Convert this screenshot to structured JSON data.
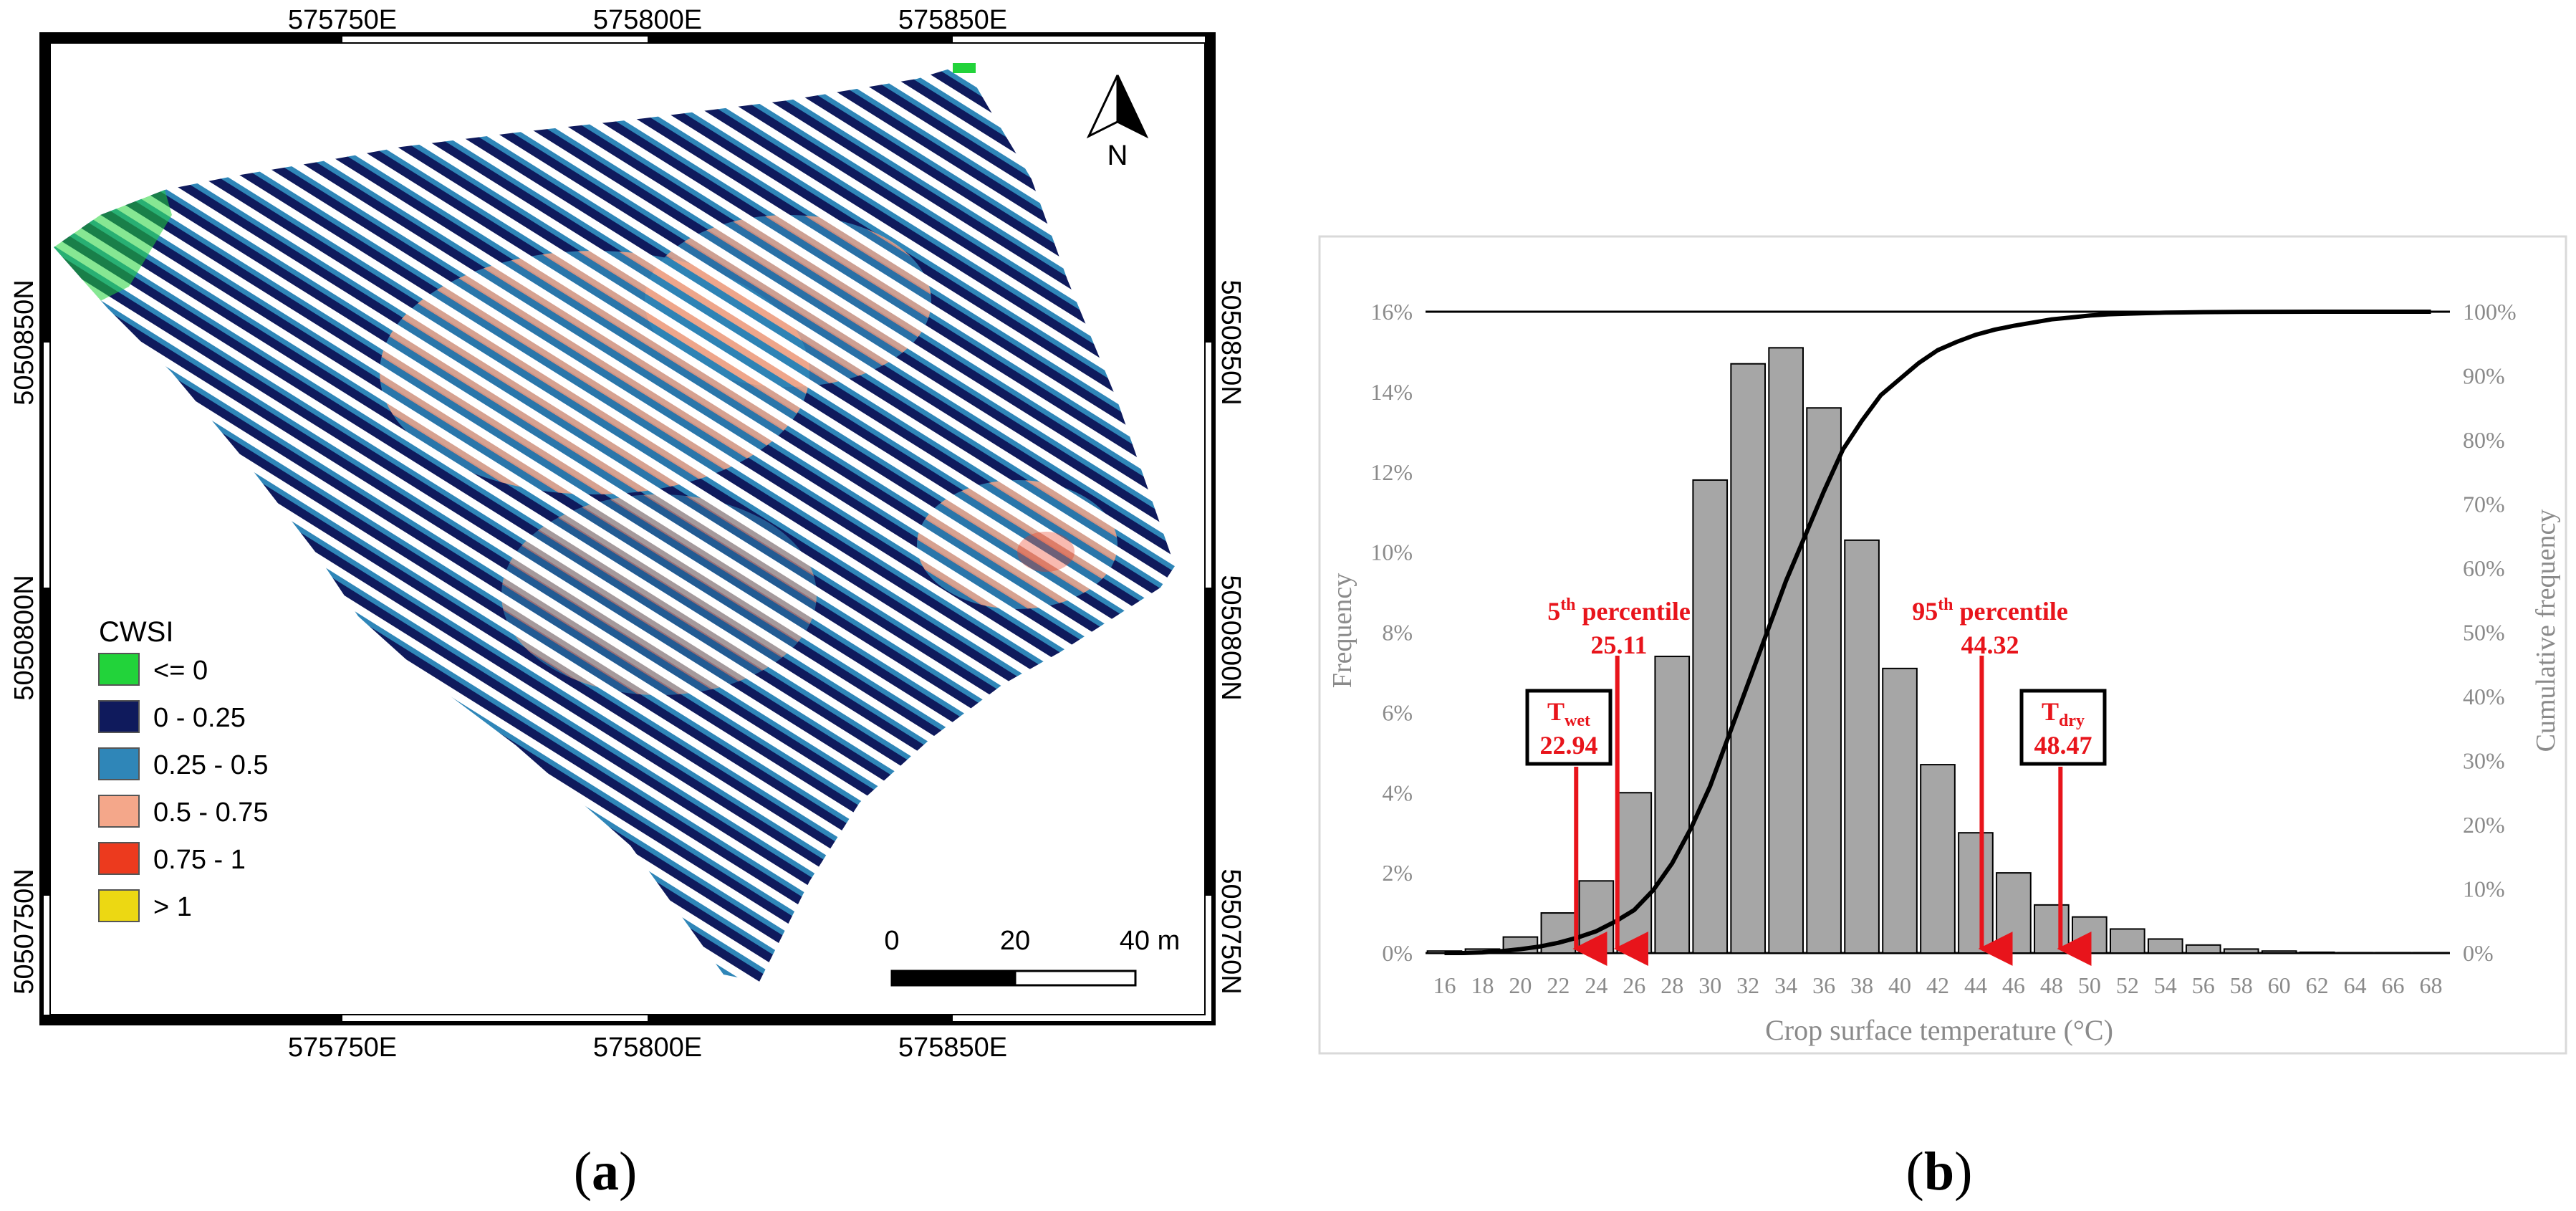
{
  "panel_labels": {
    "a": "a",
    "b": "b"
  },
  "map": {
    "coords_top": [
      "575750E",
      "575800E",
      "575850E"
    ],
    "coords_bottom": [
      "575750E",
      "575800E",
      "575850E"
    ],
    "coords_left": [
      "5050850N",
      "5050800N",
      "5050750N"
    ],
    "coords_right": [
      "5050850N",
      "5050800N",
      "5050750N"
    ],
    "north_label": "N",
    "scale": {
      "labels": [
        "0",
        "20",
        "40 m"
      ]
    },
    "legend": {
      "title": "CWSI",
      "items": [
        {
          "label": "<= 0",
          "color": "#22d33a"
        },
        {
          "label": "0 - 0.25",
          "color": "#0f1a5c"
        },
        {
          "label": "0.25 - 0.5",
          "color": "#2f86b8"
        },
        {
          "label": "0.5 - 0.75",
          "color": "#f4a78a"
        },
        {
          "label": "0.75 - 1",
          "color": "#ec3a1e"
        },
        {
          "label": "> 1",
          "color": "#ecd813"
        }
      ]
    }
  },
  "chart_data": {
    "type": "bar",
    "categories": [
      "16",
      "18",
      "20",
      "22",
      "24",
      "26",
      "28",
      "30",
      "32",
      "34",
      "36",
      "38",
      "40",
      "42",
      "44",
      "46",
      "48",
      "50",
      "52",
      "54",
      "56",
      "58",
      "60",
      "62",
      "64",
      "66",
      "68"
    ],
    "series": [
      {
        "name": "Frequency",
        "type": "bar",
        "axis": "left",
        "values": [
          0.05,
          0.1,
          0.4,
          1.0,
          1.8,
          4.0,
          7.4,
          11.8,
          14.7,
          15.1,
          13.6,
          10.3,
          7.1,
          4.7,
          3.0,
          2.0,
          1.2,
          0.9,
          0.6,
          0.35,
          0.2,
          0.1,
          0.05,
          0.02,
          0.01,
          0.01,
          0.01
        ]
      },
      {
        "name": "Cumulative frequency",
        "type": "line",
        "axis": "right",
        "x": [
          16,
          17,
          18,
          19,
          20,
          21,
          22,
          23,
          24,
          25,
          26,
          27,
          28,
          29,
          30,
          31,
          32,
          33,
          34,
          35,
          36,
          37,
          38,
          39,
          40,
          41,
          42,
          43,
          44,
          45,
          46,
          47,
          48,
          49,
          50,
          51,
          52,
          54,
          56,
          58,
          60,
          62,
          64,
          66,
          68
        ],
        "values": [
          0,
          0,
          0.1,
          0.3,
          0.6,
          1.0,
          1.6,
          2.4,
          3.4,
          4.9,
          6.7,
          9.8,
          14,
          19.5,
          26,
          34,
          42,
          50,
          58,
          65,
          72,
          78.5,
          83,
          87,
          89.5,
          92,
          94,
          95.3,
          96.4,
          97.2,
          97.8,
          98.3,
          98.8,
          99.1,
          99.4,
          99.6,
          99.7,
          99.85,
          99.93,
          99.97,
          99.99,
          100,
          100,
          100,
          100
        ]
      }
    ],
    "xlabel": "Crop surface temperature (°C)",
    "ylabel": "Frequency",
    "y2label": "Cumulative frequency",
    "ylim": [
      0,
      16
    ],
    "y2lim": [
      0,
      100
    ],
    "yticks": [
      "0%",
      "2%",
      "4%",
      "6%",
      "8%",
      "10%",
      "12%",
      "14%",
      "16%"
    ],
    "y2ticks": [
      "0%",
      "10%",
      "20%",
      "30%",
      "40%",
      "50%",
      "60%",
      "70%",
      "80%",
      "90%",
      "100%"
    ],
    "annotations": {
      "p5": {
        "sup": "th",
        "base": "5",
        "word": "percentile",
        "value": "25.11",
        "x": 25.11
      },
      "p95": {
        "sup": "th",
        "base": "95",
        "word": "percentile",
        "value": "44.32",
        "x": 44.32
      },
      "twet": {
        "symbol": "T",
        "sub": "wet",
        "value": "22.94",
        "x": 22.94
      },
      "tdry": {
        "symbol": "T",
        "sub": "dry",
        "value": "48.47",
        "x": 48.47
      }
    },
    "colors": {
      "bar": "#a6a6a6",
      "annotation": "#e8141b",
      "line": "#000000",
      "axis_text": "#8a8a8a"
    }
  }
}
